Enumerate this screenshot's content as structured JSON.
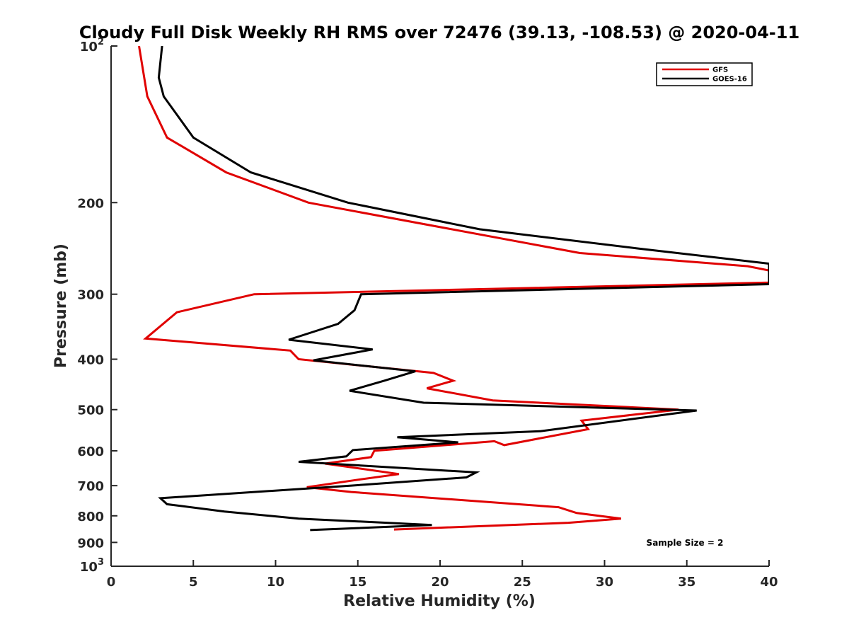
{
  "chart_data": {
    "type": "line",
    "title": "Cloudy Full Disk Weekly RH RMS over 72476 (39.13, -108.53) @ 2020-04-11",
    "xlabel": "Relative Humidity (%)",
    "ylabel": "Pressure (mb)",
    "xlim": [
      0,
      40
    ],
    "ylim": [
      100,
      1000
    ],
    "y_scale": "log",
    "y_reversed": true,
    "grid": false,
    "legend_position": "top-right",
    "x_ticks": [
      "0",
      "5",
      "10",
      "15",
      "20",
      "25",
      "30",
      "35",
      "40"
    ],
    "y_ticks": [
      {
        "value": 100,
        "label": "10",
        "sup": "2"
      },
      {
        "value": 200,
        "label": "200"
      },
      {
        "value": 300,
        "label": "300"
      },
      {
        "value": 400,
        "label": "400"
      },
      {
        "value": 500,
        "label": "500"
      },
      {
        "value": 600,
        "label": "600"
      },
      {
        "value": 700,
        "label": "700"
      },
      {
        "value": 800,
        "label": "800"
      },
      {
        "value": 900,
        "label": "900"
      },
      {
        "value": 1000,
        "label": "10",
        "sup": "3"
      }
    ],
    "annotation": "Sample Size = 2",
    "series": [
      {
        "name": "GFS",
        "color": "#e00000",
        "points": [
          [
            1.7,
            100
          ],
          [
            2.2,
            125
          ],
          [
            3.4,
            150
          ],
          [
            7.0,
            175
          ],
          [
            12.0,
            200
          ],
          [
            28.5,
            250
          ],
          [
            38.7,
            265
          ],
          [
            40.0,
            270
          ],
          [
            40.0,
            285
          ],
          [
            8.7,
            300
          ],
          [
            4.0,
            325
          ],
          [
            2.1,
            365
          ],
          [
            10.9,
            385
          ],
          [
            11.4,
            400
          ],
          [
            19.6,
            425
          ],
          [
            20.8,
            440
          ],
          [
            19.2,
            455
          ],
          [
            23.2,
            480
          ],
          [
            34.5,
            500
          ],
          [
            28.6,
            525
          ],
          [
            29.0,
            545
          ],
          [
            23.9,
            585
          ],
          [
            23.3,
            575
          ],
          [
            16.0,
            600
          ],
          [
            15.8,
            617
          ],
          [
            13.0,
            635
          ],
          [
            17.5,
            665
          ],
          [
            15.0,
            682
          ],
          [
            11.9,
            705
          ],
          [
            14.6,
            720
          ],
          [
            27.2,
            770
          ],
          [
            28.3,
            790
          ],
          [
            31.0,
            810
          ],
          [
            27.8,
            825
          ],
          [
            17.2,
            850
          ]
        ]
      },
      {
        "name": "GOES-16",
        "color": "#000000",
        "points": [
          [
            3.1,
            100
          ],
          [
            2.9,
            115
          ],
          [
            3.2,
            125
          ],
          [
            5.0,
            150
          ],
          [
            8.5,
            175
          ],
          [
            14.4,
            200
          ],
          [
            22.4,
            225
          ],
          [
            32.0,
            245
          ],
          [
            40.0,
            262
          ],
          [
            40.0,
            287
          ],
          [
            15.2,
            300
          ],
          [
            14.8,
            322
          ],
          [
            13.8,
            342
          ],
          [
            10.8,
            367
          ],
          [
            15.9,
            383
          ],
          [
            12.3,
            402
          ],
          [
            18.5,
            422
          ],
          [
            16.6,
            440
          ],
          [
            14.5,
            460
          ],
          [
            19.0,
            485
          ],
          [
            35.6,
            502
          ],
          [
            26.1,
            550
          ],
          [
            17.4,
            565
          ],
          [
            21.1,
            578
          ],
          [
            14.7,
            598
          ],
          [
            14.3,
            615
          ],
          [
            11.4,
            630
          ],
          [
            22.2,
            660
          ],
          [
            21.6,
            675
          ],
          [
            14.6,
            700
          ],
          [
            3.0,
            740
          ],
          [
            3.4,
            760
          ],
          [
            6.9,
            785
          ],
          [
            11.4,
            810
          ],
          [
            19.5,
            833
          ],
          [
            12.1,
            852
          ]
        ]
      }
    ]
  }
}
